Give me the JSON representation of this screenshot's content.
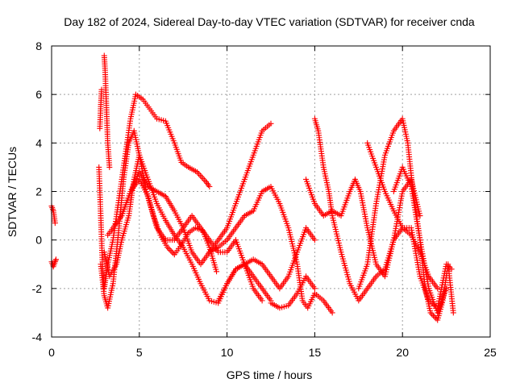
{
  "chart_data": {
    "type": "scatter",
    "title": "Day 182 of 2024, Sidereal Day-to-day VTEC variation (SDTVAR) for receiver cnda",
    "xlabel": "GPS time / hours",
    "ylabel": "SDTVAR / TECUs",
    "xlim": [
      0,
      25
    ],
    "ylim": [
      -4,
      8
    ],
    "xticks": [
      "0",
      "5",
      "10",
      "15",
      "20",
      "25"
    ],
    "yticks": [
      "-4",
      "-2",
      "0",
      "2",
      "4",
      "6",
      "8"
    ],
    "grid": true,
    "marker": "+",
    "color": "#ff0000",
    "series": [
      {
        "name": "s1",
        "x": [
          0,
          0.1,
          0.2
        ],
        "y": [
          1.4,
          1.2,
          0.7
        ]
      },
      {
        "name": "s2",
        "x": [
          0,
          0.1,
          0.2,
          0.25
        ],
        "y": [
          -0.9,
          -1.1,
          -0.9,
          -0.8
        ]
      },
      {
        "name": "s3",
        "x": [
          2.7,
          2.8,
          2.9,
          3.0,
          3.1,
          3.2,
          3.5,
          4.0,
          4.5,
          4.8,
          5.2,
          5.6,
          6.0,
          6.5,
          7.0,
          7.4,
          7.8,
          8.3,
          8.8,
          9.0
        ],
        "y": [
          3.0,
          1.0,
          -1.0,
          -2.0,
          -1.5,
          -1.0,
          0.0,
          2.5,
          5.0,
          6.0,
          5.8,
          5.4,
          5.0,
          4.9,
          4.0,
          3.2,
          3.0,
          2.8,
          2.4,
          2.2
        ]
      },
      {
        "name": "s4",
        "x": [
          2.75,
          2.8,
          2.85
        ],
        "y": [
          4.6,
          5.5,
          6.2
        ]
      },
      {
        "name": "s5",
        "x": [
          3.0,
          3.05,
          3.1,
          3.15,
          3.2,
          3.3
        ],
        "y": [
          7.6,
          7.0,
          6.0,
          5.0,
          4.0,
          3.0
        ]
      },
      {
        "name": "s6",
        "x": [
          2.8,
          3.0,
          3.2,
          3.5,
          3.8,
          4.1,
          4.4,
          4.7,
          5.0,
          5.4,
          5.8,
          6.2,
          6.6,
          7.0,
          7.4,
          7.8,
          8.2,
          8.6,
          9.0,
          9.4
        ],
        "y": [
          -1.0,
          -2.3,
          -2.8,
          -1.8,
          0.2,
          2.5,
          4.0,
          4.5,
          3.5,
          2.0,
          1.0,
          0.2,
          -0.3,
          -0.6,
          -0.2,
          0.3,
          0.5,
          0.4,
          -0.3,
          -1.3
        ]
      },
      {
        "name": "s7",
        "x": [
          3.0,
          3.3,
          3.7,
          4.0,
          4.4,
          4.7,
          5.0,
          5.5,
          6.0,
          6.5,
          7.0,
          7.5,
          8.0,
          8.5,
          9.0,
          9.5,
          10.0,
          10.5,
          11.0,
          11.5,
          12.0,
          12.5
        ],
        "y": [
          -0.5,
          -1.5,
          -1.0,
          0.0,
          1.0,
          2.5,
          3.5,
          2.5,
          1.5,
          0.8,
          0.2,
          -0.3,
          -1.0,
          -1.8,
          -2.5,
          -2.6,
          -1.8,
          -1.2,
          -1.0,
          -1.5,
          -2.0,
          -2.5
        ]
      },
      {
        "name": "s8",
        "x": [
          3.2,
          3.5,
          4.0,
          4.5,
          5.0,
          5.5,
          6.0,
          6.5,
          7.0,
          7.5,
          8.0,
          8.5,
          9.0,
          9.5,
          10.0,
          10.5,
          11.0,
          11.5,
          12.0,
          12.5
        ],
        "y": [
          0.2,
          0.5,
          1.0,
          2.0,
          2.8,
          2.2,
          2.0,
          1.8,
          1.2,
          0.5,
          -0.5,
          -1.0,
          -0.5,
          0.0,
          0.5,
          1.5,
          2.5,
          3.5,
          4.5,
          4.8
        ]
      },
      {
        "name": "s9",
        "x": [
          4.0,
          4.5,
          5.0,
          5.5,
          6.0,
          6.5,
          7.0,
          7.5,
          8.0,
          8.5,
          9.0,
          9.5,
          10.0,
          10.5,
          11.0,
          11.5,
          12.0
        ],
        "y": [
          1.0,
          2.0,
          2.5,
          1.8,
          0.5,
          0.0,
          0.0,
          0.5,
          1.0,
          0.5,
          0.0,
          -0.5,
          -0.5,
          0.0,
          -1.0,
          -2.0,
          -2.5
        ]
      },
      {
        "name": "s10",
        "x": [
          9.0,
          9.5,
          10.0,
          10.5,
          11.0,
          11.5,
          12.0,
          12.5,
          13.0,
          13.5,
          14.0,
          14.3,
          14.6,
          15.0,
          15.5,
          16.0
        ],
        "y": [
          -0.5,
          -0.3,
          0.0,
          0.5,
          1.0,
          1.2,
          2.0,
          2.2,
          1.5,
          0.5,
          -1.0,
          -2.5,
          -2.8,
          -2.2,
          -2.5,
          -3.0
        ]
      },
      {
        "name": "s11",
        "x": [
          9.5,
          10.0,
          10.5,
          11.0,
          11.5,
          12.0,
          12.5,
          13.0,
          13.5,
          14.0,
          14.5,
          15.0
        ],
        "y": [
          -2.5,
          -1.8,
          -1.2,
          -1.0,
          -0.8,
          -1.0,
          -1.5,
          -2.0,
          -1.5,
          -0.5,
          0.5,
          0.0
        ]
      },
      {
        "name": "s12",
        "x": [
          12.5,
          13.0,
          13.5,
          14.0,
          14.5,
          15.0
        ],
        "y": [
          -2.6,
          -2.8,
          -2.7,
          -2.2,
          -1.5,
          -2.0
        ]
      },
      {
        "name": "s13",
        "x": [
          14.5,
          15.0,
          15.5,
          16.0,
          16.5,
          17.0,
          17.3,
          17.6,
          18.0,
          18.5,
          19.0,
          19.5,
          20.0,
          20.5,
          21.0,
          21.5,
          22.0,
          22.5,
          22.8
        ],
        "y": [
          2.5,
          1.5,
          1.0,
          1.2,
          1.0,
          2.0,
          2.5,
          2.0,
          0.5,
          -1.0,
          -1.5,
          0.0,
          0.5,
          0.5,
          -1.5,
          -2.5,
          -2.8,
          -1.0,
          -1.2
        ]
      },
      {
        "name": "s14",
        "x": [
          15.0,
          15.2,
          15.5,
          15.8,
          16.0,
          16.5,
          17.0,
          17.5,
          18.0,
          18.5,
          19.0,
          19.5,
          20.0,
          20.5,
          21.0
        ],
        "y": [
          5.0,
          4.5,
          3.0,
          2.0,
          1.0,
          -0.5,
          -1.8,
          -2.5,
          -2.0,
          -1.5,
          -1.2,
          0.0,
          2.0,
          2.5,
          1.0
        ]
      },
      {
        "name": "s15",
        "x": [
          17.5,
          18.0,
          18.5,
          19.0,
          19.5,
          20.0,
          20.3,
          20.6,
          21.0,
          21.3,
          21.6,
          22.0,
          22.3,
          22.6,
          22.9
        ],
        "y": [
          -2.0,
          -1.0,
          1.5,
          3.5,
          4.5,
          5.0,
          4.0,
          2.0,
          0.0,
          -2.0,
          -3.0,
          -3.3,
          -2.5,
          -1.0,
          -3.0
        ]
      },
      {
        "name": "s16",
        "x": [
          18.0,
          18.5,
          19.0,
          19.5,
          20.0,
          20.5,
          21.0,
          21.5,
          22.0
        ],
        "y": [
          4.0,
          3.0,
          2.0,
          1.2,
          0.5,
          0.2,
          -0.5,
          -1.5,
          -2.0
        ]
      },
      {
        "name": "s17",
        "x": [
          19.5,
          20.0,
          20.5,
          21.0,
          21.5,
          22.0,
          22.5
        ],
        "y": [
          2.0,
          3.0,
          2.2,
          0.0,
          -2.0,
          -3.0,
          -2.0
        ]
      }
    ]
  }
}
